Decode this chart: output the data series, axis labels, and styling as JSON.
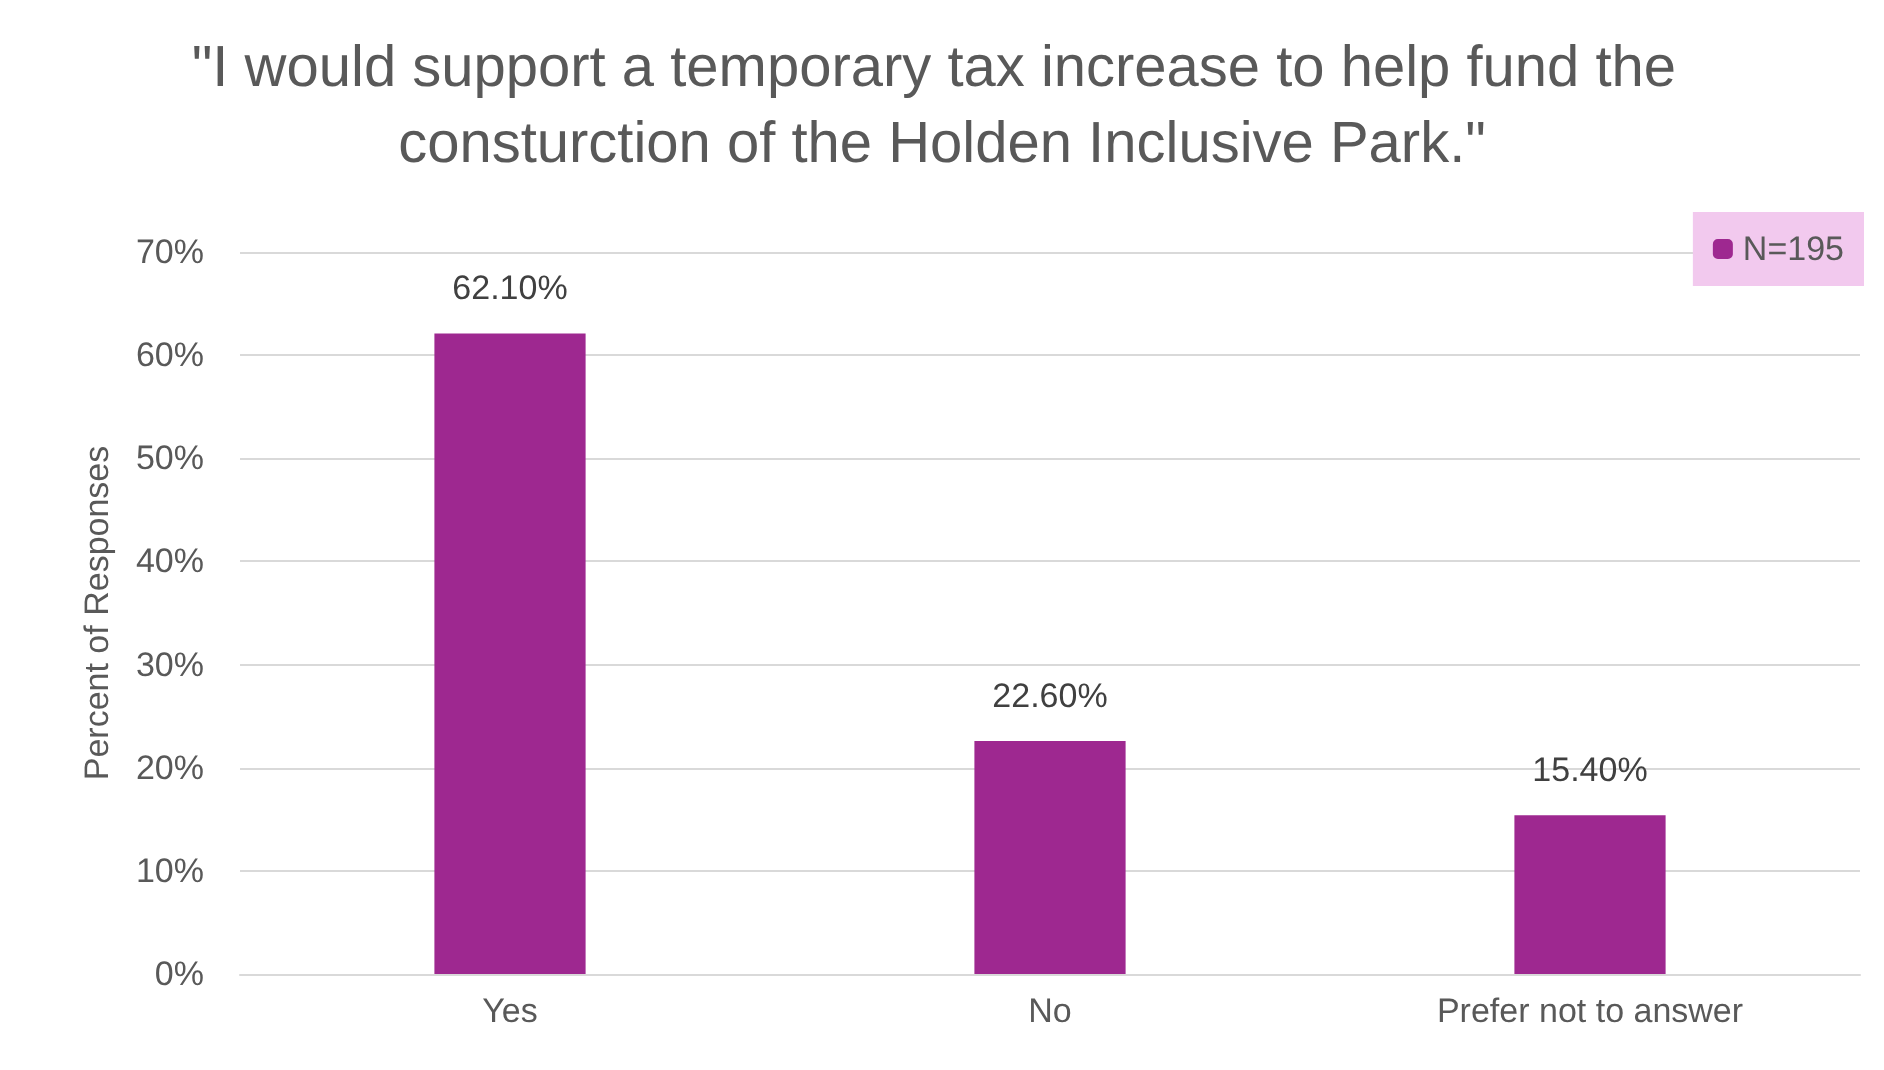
{
  "chart_data": {
    "type": "bar",
    "title": "\"I would support a temporary tax increase to help fund the consturction of the Holden Inclusive Park.\"",
    "ylabel": "Percent of Responses",
    "categories": [
      "Yes",
      "No",
      "Prefer not to answer"
    ],
    "series": [
      {
        "name": "N=195",
        "color": "#9e2890",
        "values": [
          62.1,
          22.6,
          15.4
        ],
        "value_labels": [
          "62.10%",
          "22.60%",
          "15.40%"
        ]
      }
    ],
    "ylim": [
      0,
      70
    ],
    "yticks": [
      {
        "value": 0,
        "label": "0%"
      },
      {
        "value": 10,
        "label": "10%"
      },
      {
        "value": 20,
        "label": "20%"
      },
      {
        "value": 30,
        "label": "30%"
      },
      {
        "value": 40,
        "label": "40%"
      },
      {
        "value": 50,
        "label": "50%"
      },
      {
        "value": 60,
        "label": "60%"
      },
      {
        "value": 70,
        "label": "70%"
      }
    ],
    "grid": "y",
    "legend": "top right"
  }
}
